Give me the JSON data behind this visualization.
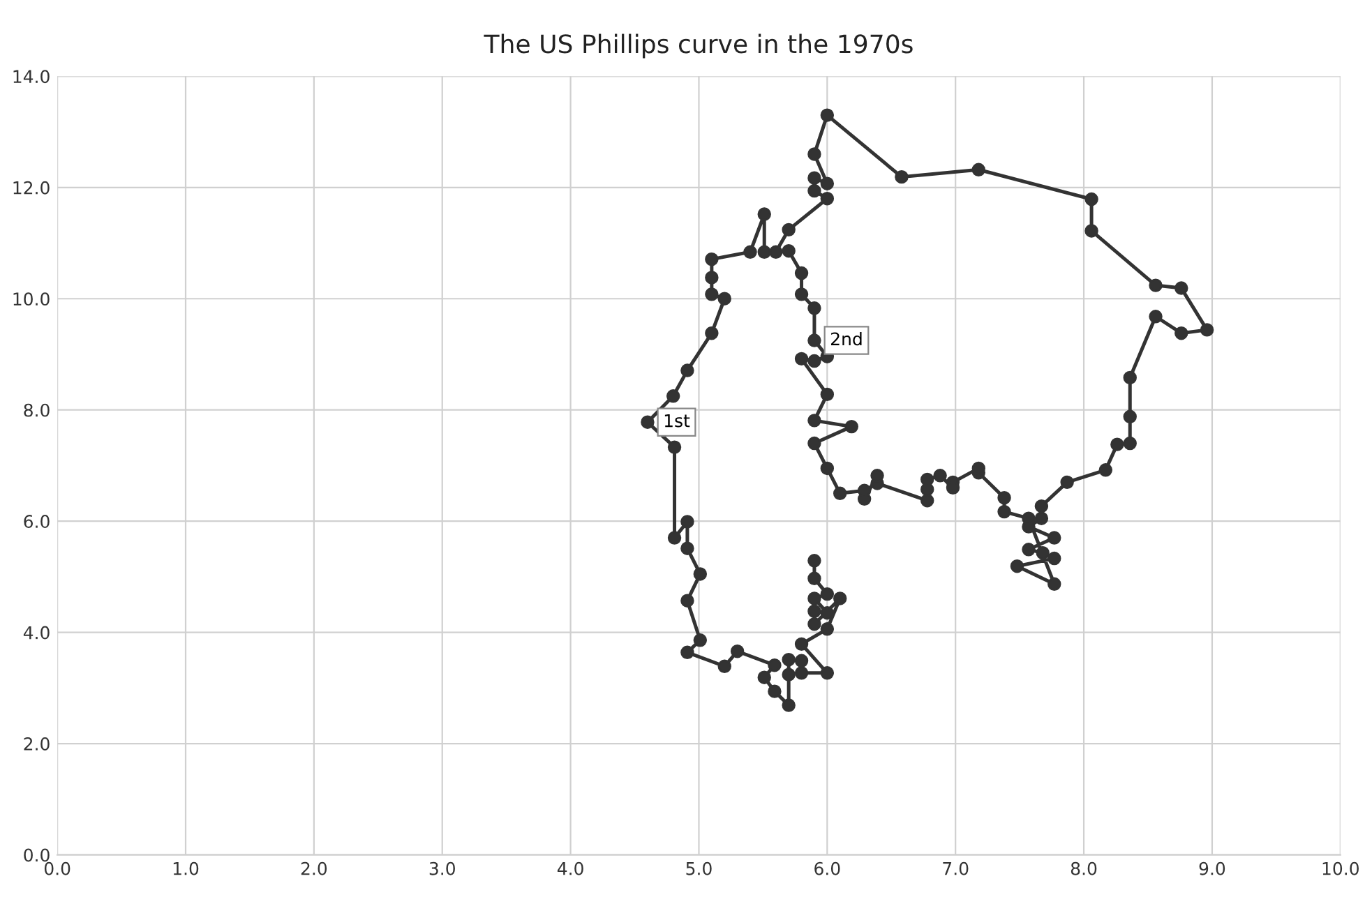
{
  "chart_data": {
    "type": "line",
    "title": "The US Phillips curve in the 1970s",
    "series": [
      {
        "color": "#333333",
        "x": [
          5.9,
          5.9,
          6.0,
          5.9,
          6.0,
          5.9,
          5.9,
          6.1,
          6.0,
          5.8,
          6.0,
          5.8,
          5.8,
          5.7,
          5.7,
          5.7,
          5.59,
          5.51,
          5.59,
          5.3,
          5.2,
          4.91,
          5.01,
          4.91,
          5.01,
          4.91,
          4.91,
          4.81,
          4.81,
          4.6,
          4.8,
          4.91,
          5.1,
          5.2,
          5.1,
          5.1,
          5.1,
          5.4,
          5.51,
          5.51,
          5.6,
          5.7,
          6.0,
          5.9,
          5.9,
          6.0,
          5.9,
          6.0,
          6.58,
          7.18,
          8.06,
          8.06,
          8.56,
          8.76,
          8.96,
          8.76,
          8.56,
          8.36,
          8.36,
          8.36,
          8.26,
          8.17,
          7.87,
          7.67,
          7.67,
          7.57,
          7.77,
          7.57,
          7.68,
          7.77,
          7.48,
          7.77,
          7.57,
          7.38,
          7.38,
          7.18,
          7.18,
          6.98,
          6.98,
          6.88,
          6.78,
          6.78,
          6.78,
          6.39,
          6.39,
          6.29,
          6.29,
          6.1,
          6.0,
          5.9,
          6.19,
          5.9,
          6.0,
          5.8,
          5.9,
          6.0,
          5.9,
          5.9,
          5.8,
          5.8,
          5.7
        ],
        "values": [
          5.29,
          4.97,
          4.69,
          4.61,
          4.35,
          4.38,
          4.15,
          4.61,
          4.06,
          3.79,
          3.27,
          3.27,
          3.49,
          3.51,
          3.24,
          2.69,
          2.94,
          3.19,
          3.41,
          3.66,
          3.39,
          3.64,
          3.86,
          4.57,
          5.05,
          5.51,
          5.99,
          5.7,
          7.33,
          7.78,
          8.25,
          8.71,
          9.38,
          10.0,
          10.08,
          10.38,
          10.71,
          10.84,
          11.52,
          10.84,
          10.84,
          11.24,
          11.8,
          11.94,
          12.17,
          12.07,
          12.6,
          13.3,
          12.19,
          12.32,
          11.79,
          11.22,
          10.24,
          10.19,
          9.44,
          9.38,
          9.68,
          8.58,
          7.88,
          7.4,
          7.38,
          6.92,
          6.7,
          6.27,
          6.05,
          5.9,
          5.7,
          5.49,
          5.43,
          5.33,
          5.19,
          4.87,
          6.05,
          6.17,
          6.42,
          6.87,
          6.95,
          6.7,
          6.6,
          6.82,
          6.75,
          6.57,
          6.37,
          6.68,
          6.82,
          6.4,
          6.55,
          6.5,
          6.95,
          7.4,
          7.7,
          7.81,
          8.28,
          8.92,
          8.88,
          8.96,
          9.25,
          9.83,
          10.08,
          10.46,
          10.86
        ]
      }
    ],
    "xlim": [
      0,
      10
    ],
    "ylim": [
      0,
      14
    ],
    "xticks": [
      {
        "value": 0,
        "label": "0.0"
      },
      {
        "value": 1,
        "label": "1.0"
      },
      {
        "value": 2,
        "label": "2.0"
      },
      {
        "value": 3,
        "label": "3.0"
      },
      {
        "value": 4,
        "label": "4.0"
      },
      {
        "value": 5,
        "label": "5.0"
      },
      {
        "value": 6,
        "label": "6.0"
      },
      {
        "value": 7,
        "label": "7.0"
      },
      {
        "value": 8,
        "label": "8.0"
      },
      {
        "value": 9,
        "label": "9.0"
      },
      {
        "value": 10,
        "label": "10.0"
      }
    ],
    "yticks": [
      {
        "value": 0,
        "label": "0.0"
      },
      {
        "value": 2,
        "label": "2.0"
      },
      {
        "value": 4,
        "label": "4.0"
      },
      {
        "value": 6,
        "label": "6.0"
      },
      {
        "value": 8,
        "label": "8.0"
      },
      {
        "value": 10,
        "label": "10.0"
      },
      {
        "value": 12,
        "label": "12.0"
      },
      {
        "value": 14,
        "label": "14.0"
      }
    ],
    "grid": true,
    "marker": "circle",
    "line_style": "solid",
    "annotations": [
      {
        "text": "1st",
        "x": 4.6,
        "y": 7.78
      },
      {
        "text": "2nd",
        "x": 5.9,
        "y": 9.25
      }
    ]
  }
}
